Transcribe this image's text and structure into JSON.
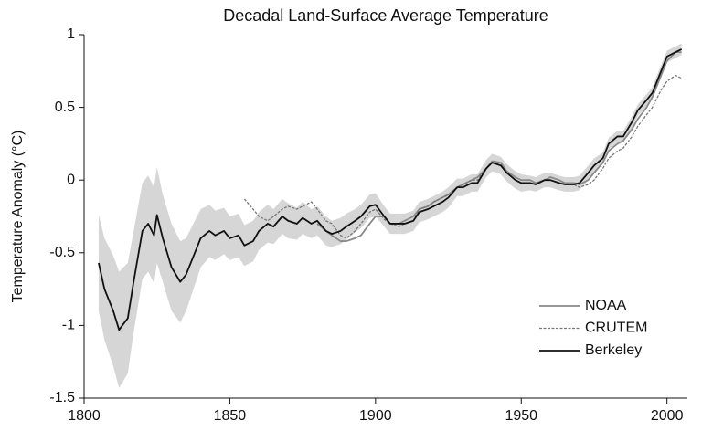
{
  "chart_data": {
    "type": "line",
    "title": "Decadal Land-Surface Average Temperature",
    "ylabel": "Temperature Anomaly (°C)",
    "x": [
      1805,
      1807,
      1810,
      1812,
      1815,
      1817,
      1820,
      1822,
      1824,
      1825,
      1827,
      1830,
      1833,
      1835,
      1838,
      1840,
      1843,
      1845,
      1848,
      1850,
      1853,
      1855,
      1858,
      1860,
      1863,
      1865,
      1868,
      1870,
      1873,
      1875,
      1878,
      1880,
      1883,
      1885,
      1888,
      1890,
      1893,
      1895,
      1898,
      1900,
      1903,
      1905,
      1908,
      1910,
      1913,
      1915,
      1918,
      1920,
      1923,
      1925,
      1928,
      1930,
      1933,
      1935,
      1938,
      1940,
      1943,
      1945,
      1948,
      1950,
      1953,
      1955,
      1958,
      1960,
      1963,
      1965,
      1968,
      1970,
      1973,
      1975,
      1978,
      1980,
      1983,
      1985,
      1988,
      1990,
      1993,
      1995,
      1998,
      2000,
      2003,
      2005
    ],
    "band": {
      "color": "#d6d6d6",
      "lower": [
        -0.9,
        -1.1,
        -1.28,
        -1.43,
        -1.33,
        -1.05,
        -0.68,
        -0.63,
        -0.71,
        -0.57,
        -0.7,
        -0.9,
        -0.98,
        -0.9,
        -0.72,
        -0.6,
        -0.53,
        -0.55,
        -0.51,
        -0.55,
        -0.53,
        -0.59,
        -0.56,
        -0.48,
        -0.43,
        -0.44,
        -0.37,
        -0.4,
        -0.41,
        -0.37,
        -0.4,
        -0.38,
        -0.45,
        -0.46,
        -0.44,
        -0.41,
        -0.36,
        -0.33,
        -0.26,
        -0.25,
        -0.32,
        -0.37,
        -0.37,
        -0.37,
        -0.35,
        -0.29,
        -0.27,
        -0.25,
        -0.22,
        -0.19,
        -0.11,
        -0.11,
        -0.08,
        -0.08,
        0.02,
        0.06,
        0.04,
        -0.01,
        -0.06,
        -0.08,
        -0.07,
        -0.08,
        -0.05,
        -0.05,
        -0.07,
        -0.08,
        -0.08,
        -0.07,
        0.0,
        0.05,
        0.11,
        0.21,
        0.26,
        0.26,
        0.36,
        0.44,
        0.51,
        0.56,
        0.71,
        0.81,
        0.84,
        0.86
      ],
      "upper": [
        -0.24,
        -0.4,
        -0.52,
        -0.63,
        -0.57,
        -0.35,
        -0.02,
        0.03,
        -0.05,
        0.09,
        -0.1,
        -0.3,
        -0.42,
        -0.4,
        -0.28,
        -0.2,
        -0.17,
        -0.21,
        -0.19,
        -0.25,
        -0.23,
        -0.31,
        -0.28,
        -0.22,
        -0.17,
        -0.2,
        -0.13,
        -0.16,
        -0.19,
        -0.15,
        -0.2,
        -0.18,
        -0.25,
        -0.28,
        -0.26,
        -0.23,
        -0.2,
        -0.17,
        -0.1,
        -0.09,
        -0.18,
        -0.23,
        -0.23,
        -0.23,
        -0.21,
        -0.15,
        -0.13,
        -0.11,
        -0.08,
        -0.05,
        0.01,
        0.01,
        0.04,
        0.04,
        0.14,
        0.18,
        0.16,
        0.11,
        0.06,
        0.04,
        0.03,
        0.02,
        0.05,
        0.05,
        0.03,
        0.02,
        0.02,
        0.03,
        0.1,
        0.15,
        0.19,
        0.29,
        0.34,
        0.34,
        0.44,
        0.52,
        0.59,
        0.64,
        0.79,
        0.89,
        0.92,
        0.94
      ]
    },
    "series": [
      {
        "name": "NOAA",
        "color": "#8a8a8a",
        "dashed": false,
        "values": [
          null,
          null,
          null,
          null,
          null,
          null,
          null,
          null,
          null,
          null,
          null,
          null,
          null,
          null,
          null,
          null,
          null,
          null,
          null,
          null,
          null,
          null,
          null,
          null,
          null,
          null,
          null,
          null,
          null,
          null,
          null,
          -0.3,
          -0.35,
          -0.38,
          -0.42,
          -0.42,
          -0.4,
          -0.38,
          -0.3,
          -0.25,
          -0.25,
          -0.3,
          -0.3,
          -0.28,
          -0.25,
          -0.2,
          -0.18,
          -0.15,
          -0.12,
          -0.1,
          -0.05,
          -0.03,
          0.0,
          0.02,
          0.08,
          0.13,
          0.12,
          0.06,
          0.02,
          0.0,
          0.0,
          -0.02,
          0.0,
          0.02,
          0.0,
          -0.02,
          -0.02,
          -0.03,
          0.0,
          0.05,
          0.12,
          0.2,
          0.25,
          0.27,
          0.35,
          0.42,
          0.5,
          0.57,
          0.72,
          0.82,
          0.88,
          0.88
        ]
      },
      {
        "name": "CRUTEM",
        "color": "#777777",
        "dashed": true,
        "values": [
          null,
          null,
          null,
          null,
          null,
          null,
          null,
          null,
          null,
          null,
          null,
          null,
          null,
          null,
          null,
          null,
          null,
          null,
          null,
          null,
          null,
          -0.13,
          -0.2,
          -0.25,
          -0.28,
          -0.25,
          -0.2,
          -0.18,
          -0.2,
          -0.18,
          -0.15,
          -0.2,
          -0.28,
          -0.3,
          -0.38,
          -0.4,
          -0.35,
          -0.3,
          -0.22,
          -0.2,
          -0.27,
          -0.3,
          -0.32,
          -0.3,
          -0.28,
          -0.2,
          -0.18,
          -0.15,
          -0.12,
          -0.1,
          -0.05,
          -0.03,
          0.0,
          0.0,
          0.08,
          0.12,
          0.1,
          0.05,
          0.0,
          -0.02,
          -0.02,
          -0.03,
          0.0,
          0.0,
          -0.02,
          -0.03,
          -0.03,
          -0.05,
          -0.03,
          0.0,
          0.08,
          0.15,
          0.2,
          0.22,
          0.3,
          0.37,
          0.45,
          0.5,
          0.62,
          0.68,
          0.72,
          0.7
        ]
      },
      {
        "name": "Berkeley",
        "color": "#111111",
        "dashed": false,
        "values": [
          -0.57,
          -0.75,
          -0.9,
          -1.03,
          -0.95,
          -0.7,
          -0.35,
          -0.3,
          -0.38,
          -0.24,
          -0.4,
          -0.6,
          -0.7,
          -0.65,
          -0.5,
          -0.4,
          -0.35,
          -0.38,
          -0.35,
          -0.4,
          -0.38,
          -0.45,
          -0.42,
          -0.35,
          -0.3,
          -0.32,
          -0.25,
          -0.28,
          -0.3,
          -0.26,
          -0.3,
          -0.28,
          -0.35,
          -0.37,
          -0.35,
          -0.32,
          -0.28,
          -0.25,
          -0.18,
          -0.17,
          -0.25,
          -0.3,
          -0.3,
          -0.3,
          -0.28,
          -0.22,
          -0.2,
          -0.18,
          -0.15,
          -0.12,
          -0.05,
          -0.05,
          -0.02,
          -0.02,
          0.08,
          0.12,
          0.1,
          0.05,
          0.0,
          -0.02,
          -0.02,
          -0.03,
          0.0,
          0.0,
          -0.02,
          -0.03,
          -0.03,
          -0.02,
          0.05,
          0.1,
          0.15,
          0.25,
          0.3,
          0.3,
          0.4,
          0.48,
          0.55,
          0.6,
          0.75,
          0.85,
          0.88,
          0.9
        ]
      }
    ],
    "xlim": [
      1800,
      2007
    ],
    "xticks": [
      1800,
      1850,
      1900,
      1950,
      2000
    ],
    "ylim": [
      -1.5,
      1
    ],
    "yticks": [
      -1.5,
      -1,
      -0.5,
      0,
      0.5,
      1
    ],
    "grid": false,
    "legend": "lower right"
  }
}
